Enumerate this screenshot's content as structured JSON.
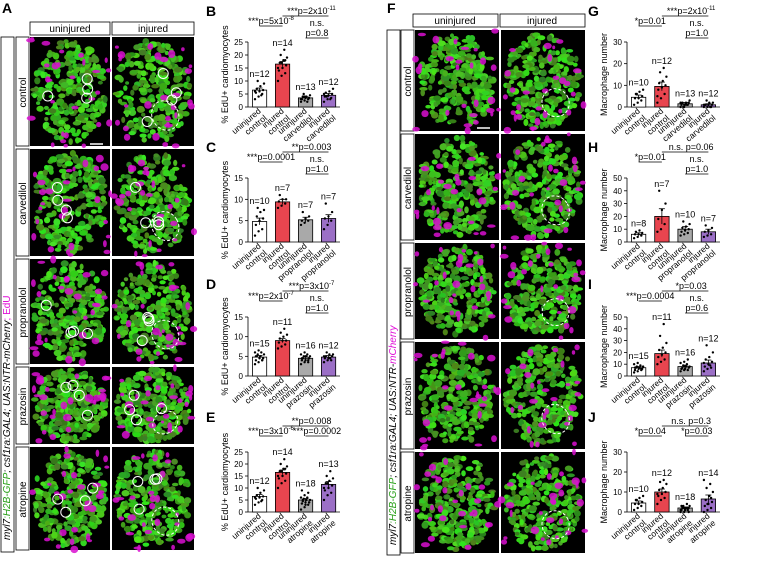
{
  "panel_letters": {
    "A": "A",
    "B": "B",
    "C": "C",
    "D": "D",
    "E": "E",
    "F": "F",
    "G": "G",
    "H": "H",
    "I": "I",
    "J": "J"
  },
  "column_headers": {
    "uninjured": "uninjured",
    "injured": "injured"
  },
  "row_labels": [
    "control",
    "carvedilol",
    "propranolol",
    "prazosin",
    "atropine"
  ],
  "genotype_label_edu": {
    "part1": "myl7",
    "part2": ":H2B-GFP",
    "part3": "; csf1ra:GAL4; UAS:NTR-mCherry",
    "part4": "; EdU"
  },
  "genotype_label_mac": {
    "part1": "myl7",
    "part2": ":H2B-GFP",
    "part3": "; csf1ra:GAL4; UAS:NTR-",
    "part4": "mCherry"
  },
  "colors": {
    "green": "#39c21f",
    "magenta": "#e010d8",
    "bar_red": "#e8454f",
    "bar_purple": "#9b6fc6",
    "bar_gray": "#a9a9a9",
    "bar_white": "#ffffff"
  },
  "chart_data": [
    {
      "id": "B",
      "type": "bar",
      "ylabel": "% EdU+ cardiomyocytes",
      "ylim": [
        0,
        25
      ],
      "yticks": [
        0,
        5,
        10,
        15,
        20,
        25
      ],
      "categories": [
        "uninjured\ncontrol",
        "injured\ncontrol",
        "uninjured\ncarvedilol",
        "injured\ncarvedilol"
      ],
      "values": [
        6.5,
        16.5,
        3.5,
        4.5
      ],
      "errors": [
        0.8,
        1.0,
        0.4,
        0.7
      ],
      "n_labels": [
        "n=12",
        "n=14",
        "n=13",
        "n=12"
      ],
      "points": [
        [
          3,
          4,
          5,
          5.5,
          6,
          6.5,
          7,
          8,
          9,
          10,
          4.5,
          6
        ],
        [
          10,
          12,
          13,
          14,
          15,
          16,
          17,
          18,
          19,
          20,
          22,
          15,
          17,
          18
        ],
        [
          2,
          2.5,
          3,
          3,
          3.5,
          3.5,
          4,
          4,
          4.5,
          5,
          2,
          3,
          4
        ],
        [
          2,
          3,
          3.5,
          4,
          4.5,
          5,
          5.5,
          6,
          7,
          4,
          3,
          5
        ]
      ],
      "stats": [
        {
          "label": "***p=5x10",
          "sup": "-8"
        },
        {
          "label": "***p=2x10",
          "sup": "-11"
        },
        {
          "label": "n.s."
        },
        {
          "label": "p=0.8"
        }
      ]
    },
    {
      "id": "C",
      "type": "bar",
      "ylabel": "% EdU+ cardiomyocytes",
      "ylim": [
        0,
        15
      ],
      "yticks": [
        0,
        5,
        10,
        15
      ],
      "categories": [
        "uninjured\ncontrol",
        "injured\ncontrol",
        "uninjured\npropranolol",
        "injured\npropranolol"
      ],
      "values": [
        4.8,
        9.4,
        5.2,
        5.5
      ],
      "errors": [
        0.8,
        0.6,
        0.6,
        0.9
      ],
      "n_labels": [
        "n=10",
        "n=7",
        "n=7",
        "n=7"
      ],
      "points": [
        [
          1.5,
          2.5,
          3,
          4,
          5,
          5.5,
          6,
          7,
          7.5,
          8
        ],
        [
          8,
          8.5,
          9,
          9.5,
          10,
          10,
          11
        ],
        [
          4,
          4.5,
          5,
          5,
          5.5,
          6,
          7
        ],
        [
          3,
          4,
          5,
          5.5,
          6,
          7,
          9
        ]
      ],
      "stats": [
        {
          "label": "***p=0.0001"
        },
        {
          "label": "**p=0.003"
        },
        {
          "label": "n.s."
        },
        {
          "label": "p=1.0"
        }
      ]
    },
    {
      "id": "D",
      "type": "bar",
      "ylabel": "% EdU+ cardiomyocytes",
      "ylim": [
        0,
        15
      ],
      "yticks": [
        0,
        5,
        10,
        15
      ],
      "categories": [
        "uninjured\ncontrol",
        "injured\ncontrol",
        "uninjured\nprazosin",
        "injured\nprazosin"
      ],
      "values": [
        4.8,
        9.0,
        4.5,
        4.8
      ],
      "errors": [
        0.4,
        0.5,
        0.3,
        0.4
      ],
      "n_labels": [
        "n=15",
        "n=11",
        "n=16",
        "n=12"
      ],
      "points": [
        [
          3,
          3.5,
          4,
          4,
          4.5,
          4.5,
          5,
          5,
          5.5,
          5.5,
          6,
          6,
          6.5,
          4,
          5
        ],
        [
          7,
          7.5,
          8,
          8.5,
          9,
          9,
          9.5,
          10,
          10.5,
          11,
          12
        ],
        [
          3,
          3.5,
          3.5,
          4,
          4,
          4.5,
          4.5,
          5,
          5,
          5,
          5.5,
          5.5,
          6,
          4,
          4.5,
          5
        ],
        [
          3.5,
          4,
          4,
          4.5,
          4.5,
          5,
          5,
          5.5,
          5.5,
          6,
          4.5,
          5
        ]
      ],
      "stats": [
        {
          "label": "***p=2x10",
          "sup": "-7"
        },
        {
          "label": "***p=3x10",
          "sup": "-7"
        },
        {
          "label": "n.s."
        },
        {
          "label": "p=1.0"
        }
      ]
    },
    {
      "id": "E",
      "type": "bar",
      "ylabel": "% EdU+ cardiomyocytes",
      "ylim": [
        0,
        25
      ],
      "yticks": [
        0,
        5,
        10,
        15,
        20,
        25
      ],
      "categories": [
        "uninjured\ncontrol",
        "injured\ncontrol",
        "uninjured\natropine",
        "injured\natropine"
      ],
      "values": [
        6.5,
        16.5,
        5.0,
        11.5
      ],
      "errors": [
        0.8,
        1.0,
        0.6,
        1.2
      ],
      "n_labels": [
        "n=12",
        "n=14",
        "n=18",
        "n=13"
      ],
      "points": [
        [
          3,
          4,
          5,
          5.5,
          6,
          6.5,
          7,
          8,
          9,
          10,
          4.5,
          6
        ],
        [
          10,
          12,
          13,
          14,
          15,
          16,
          17,
          18,
          19,
          20,
          22,
          15,
          17,
          18
        ],
        [
          1,
          2,
          3,
          3.5,
          4,
          4,
          4.5,
          5,
          5,
          5.5,
          6,
          6,
          7,
          8,
          9,
          3,
          4,
          5
        ],
        [
          5,
          7,
          8,
          9,
          10,
          11,
          12,
          13,
          14,
          15,
          17,
          10,
          12
        ]
      ],
      "stats": [
        {
          "label": "***p=3x10",
          "sup": "-6"
        },
        {
          "label": "**p=0.008"
        },
        {
          "label": "***p=0.0002"
        }
      ]
    },
    {
      "id": "G",
      "type": "bar",
      "ylabel": "Macrophage number",
      "ylim": [
        0,
        30
      ],
      "yticks": [
        0,
        10,
        20,
        30
      ],
      "categories": [
        "uninjured\ncontrol",
        "injured\ncontrol",
        "uninjured\ncarvedilol",
        "injured\ncarvedilol"
      ],
      "values": [
        4.5,
        9.5,
        1.5,
        1.0
      ],
      "errors": [
        1.0,
        2.0,
        0.6,
        0.5
      ],
      "n_labels": [
        "n=10",
        "n=12",
        "n=13",
        "n=12"
      ],
      "points": [
        [
          1,
          2,
          3,
          4,
          4,
          5,
          6,
          7,
          8,
          6
        ],
        [
          2,
          4,
          6,
          8,
          9,
          10,
          11,
          12,
          14,
          16,
          18,
          5
        ],
        [
          0,
          0,
          1,
          1,
          1,
          2,
          2,
          2,
          3,
          0,
          1,
          2,
          1
        ],
        [
          0,
          0,
          0,
          1,
          1,
          1,
          1,
          2,
          2,
          3,
          0,
          1
        ]
      ],
      "stats": [
        {
          "label": "*p=0.01"
        },
        {
          "label": "***p=2x10",
          "sup": "-11"
        },
        {
          "label": "n.s."
        },
        {
          "label": "p=1.0"
        }
      ]
    },
    {
      "id": "H",
      "type": "bar",
      "ylabel": "Macrophage number",
      "ylim": [
        0,
        50
      ],
      "yticks": [
        0,
        10,
        20,
        30,
        40,
        50
      ],
      "categories": [
        "uninjured\ncontrol",
        "injured\ncontrol",
        "uninjured\npropranolol",
        "injured\npropranolol"
      ],
      "values": [
        6.0,
        20.0,
        10.0,
        8.0
      ],
      "errors": [
        1.2,
        6.0,
        2.0,
        2.0
      ],
      "n_labels": [
        "n=8",
        "n=7",
        "n=10",
        "n=7"
      ],
      "points": [
        [
          3,
          4,
          5,
          6,
          6,
          7,
          8,
          9
        ],
        [
          8,
          10,
          14,
          18,
          25,
          30,
          40
        ],
        [
          5,
          6,
          7,
          8,
          9,
          10,
          11,
          12,
          14,
          16
        ],
        [
          4,
          5,
          6,
          8,
          9,
          11,
          13
        ]
      ],
      "stats": [
        {
          "label": "*p=0.01"
        },
        {
          "label": "n.s. p=0.06"
        },
        {
          "label": "n.s."
        },
        {
          "label": "p=1.0"
        }
      ]
    },
    {
      "id": "I",
      "type": "bar",
      "ylabel": "Macrophage number",
      "ylim": [
        0,
        50
      ],
      "yticks": [
        0,
        10,
        20,
        30,
        40,
        50
      ],
      "categories": [
        "uninjured\ncontrol",
        "injured\ncontrol",
        "uninjured\nprazosin",
        "injured\nprazosin"
      ],
      "values": [
        7.0,
        19.0,
        8.0,
        11.0
      ],
      "errors": [
        1.0,
        3.0,
        1.2,
        2.5
      ],
      "n_labels": [
        "n=15",
        "n=11",
        "n=16",
        "n=12"
      ],
      "points": [
        [
          3,
          4,
          5,
          5,
          6,
          6,
          7,
          7,
          8,
          8,
          9,
          10,
          11,
          6,
          7
        ],
        [
          10,
          12,
          14,
          16,
          18,
          20,
          22,
          24,
          28,
          34,
          44
        ],
        [
          4,
          5,
          5,
          6,
          6,
          7,
          7,
          8,
          8,
          9,
          10,
          11,
          12,
          14,
          6,
          8
        ],
        [
          4,
          6,
          7,
          8,
          10,
          12,
          14,
          16,
          20,
          26,
          9,
          11
        ]
      ],
      "stats": [
        {
          "label": "***p=0.0004"
        },
        {
          "label": "*p=0.03"
        },
        {
          "label": "n.s."
        },
        {
          "label": "p=0.6"
        }
      ]
    },
    {
      "id": "J",
      "type": "bar",
      "ylabel": "Macrophage number",
      "ylim": [
        0,
        30
      ],
      "yticks": [
        0,
        10,
        20,
        30
      ],
      "categories": [
        "uninjured\ncontrol",
        "injured\ncontrol",
        "uninjured\natropine",
        "injured\natropine"
      ],
      "values": [
        4.5,
        10.0,
        2.0,
        6.5
      ],
      "errors": [
        1.0,
        1.5,
        0.5,
        2.0
      ],
      "n_labels": [
        "n=10",
        "n=12",
        "n=18",
        "n=14"
      ],
      "points": [
        [
          1,
          2,
          3,
          4,
          4,
          5,
          6,
          7,
          8,
          6
        ],
        [
          4,
          6,
          7,
          8,
          9,
          10,
          11,
          12,
          14,
          15,
          16,
          9
        ],
        [
          0,
          0,
          1,
          1,
          1,
          2,
          2,
          2,
          3,
          3,
          4,
          1,
          2,
          2,
          3,
          1,
          0,
          2
        ],
        [
          0,
          1,
          2,
          3,
          4,
          5,
          6,
          8,
          10,
          12,
          14,
          16,
          4,
          7
        ]
      ],
      "stats": [
        {
          "label": "*p=0.04"
        },
        {
          "label": "n.s. p=0.3"
        },
        {
          "label": "*p=0.03"
        }
      ]
    }
  ]
}
